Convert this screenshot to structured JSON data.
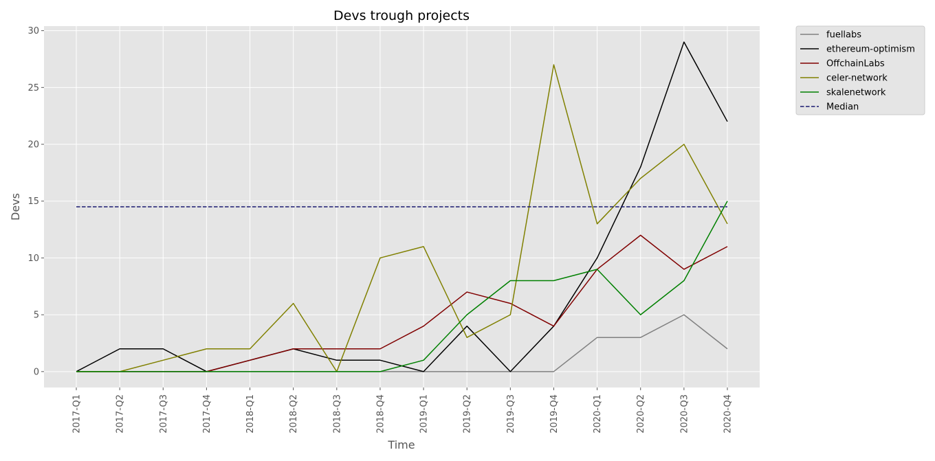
{
  "chart_data": {
    "type": "line",
    "title": "Devs trough projects",
    "xlabel": "Time",
    "ylabel": "Devs",
    "categories": [
      "2017-Q1",
      "2017-Q2",
      "2017-Q3",
      "2017-Q4",
      "2018-Q1",
      "2018-Q2",
      "2018-Q3",
      "2018-Q4",
      "2019-Q1",
      "2019-Q2",
      "2019-Q3",
      "2019-Q4",
      "2020-Q1",
      "2020-Q2",
      "2020-Q3",
      "2020-Q4"
    ],
    "ylim": [
      -1.4,
      30.4
    ],
    "yticks": [
      0,
      5,
      10,
      15,
      20,
      25,
      30
    ],
    "grid": true,
    "legend_position": "outside-top-right",
    "series": [
      {
        "name": "fuellabs",
        "color": "#808080",
        "dashed": false,
        "values": [
          0,
          0,
          0,
          0,
          0,
          0,
          0,
          0,
          0,
          0,
          0,
          0,
          3,
          3,
          5,
          2
        ]
      },
      {
        "name": "ethereum-optimism",
        "color": "#000000",
        "dashed": false,
        "values": [
          0,
          2,
          2,
          0,
          1,
          2,
          1,
          1,
          0,
          4,
          0,
          4,
          10,
          18,
          29,
          22
        ]
      },
      {
        "name": "OffchainLabs",
        "color": "#800000",
        "dashed": false,
        "values": [
          0,
          0,
          0,
          0,
          1,
          2,
          2,
          2,
          4,
          7,
          6,
          4,
          9,
          12,
          9,
          11
        ]
      },
      {
        "name": "celer-network",
        "color": "#808000",
        "dashed": false,
        "values": [
          0,
          0,
          1,
          2,
          2,
          6,
          0,
          10,
          11,
          3,
          5,
          27,
          13,
          17,
          20,
          13
        ]
      },
      {
        "name": "skalenetwork",
        "color": "#008000",
        "dashed": false,
        "values": [
          0,
          0,
          0,
          0,
          0,
          0,
          0,
          0,
          1,
          5,
          8,
          8,
          9,
          5,
          8,
          15
        ]
      },
      {
        "name": "Median",
        "color": "#191970",
        "dashed": true,
        "values": [
          14.5,
          14.5,
          14.5,
          14.5,
          14.5,
          14.5,
          14.5,
          14.5,
          14.5,
          14.5,
          14.5,
          14.5,
          14.5,
          14.5,
          14.5,
          14.5
        ]
      }
    ]
  }
}
